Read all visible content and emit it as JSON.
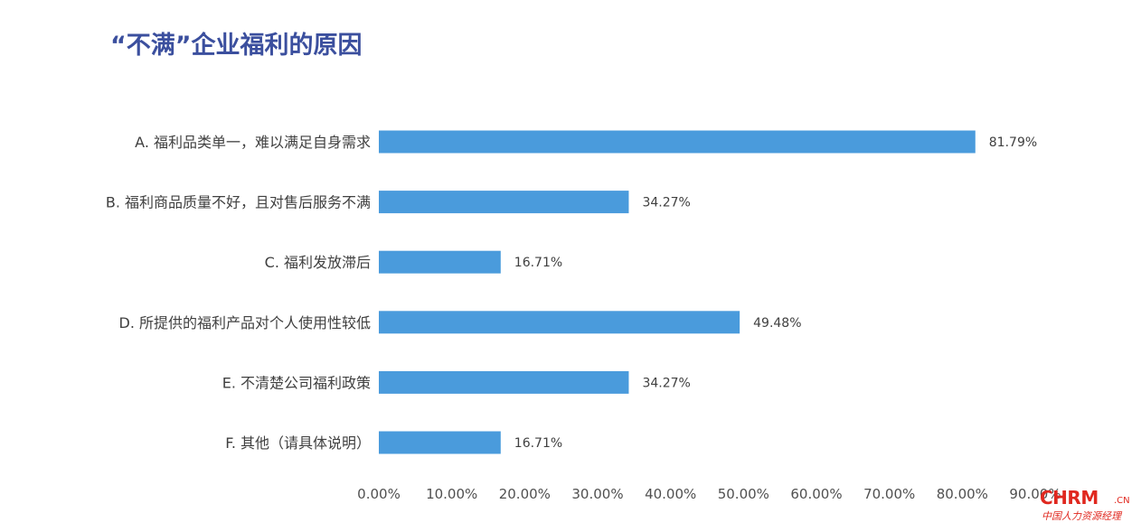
{
  "title": "“不满”企业福利的原因",
  "logo": {
    "main": "CHRM",
    "suffix": ".CN",
    "sub": "中国人力资源经理"
  },
  "colors": {
    "bar": "#4a9bdc",
    "title": "#3b4f9e",
    "logo": "#e0281f"
  },
  "chart_data": {
    "type": "bar",
    "orientation": "horizontal",
    "categories": [
      "A. 福利品类单一，难以满足自身需求",
      "B. 福利商品质量不好，且对售后服务不满",
      "C. 福利发放滞后",
      "D. 所提供的福利产品对个人使用性较低",
      "E. 不清楚公司福利政策",
      "F. 其他（请具体说明）"
    ],
    "values": [
      81.79,
      34.27,
      16.71,
      49.48,
      34.27,
      16.71
    ],
    "value_labels": [
      "81.79%",
      "34.27%",
      "16.71%",
      "49.48%",
      "34.27%",
      "16.71%"
    ],
    "xlim": [
      0,
      90
    ],
    "x_ticks": [
      0,
      10,
      20,
      30,
      40,
      50,
      60,
      70,
      80,
      90
    ],
    "x_tick_labels": [
      "0.00%",
      "10.00%",
      "20.00%",
      "30.00%",
      "40.00%",
      "50.00%",
      "60.00%",
      "70.00%",
      "80.00%",
      "90.00%"
    ],
    "grid": false,
    "legend": "none"
  }
}
